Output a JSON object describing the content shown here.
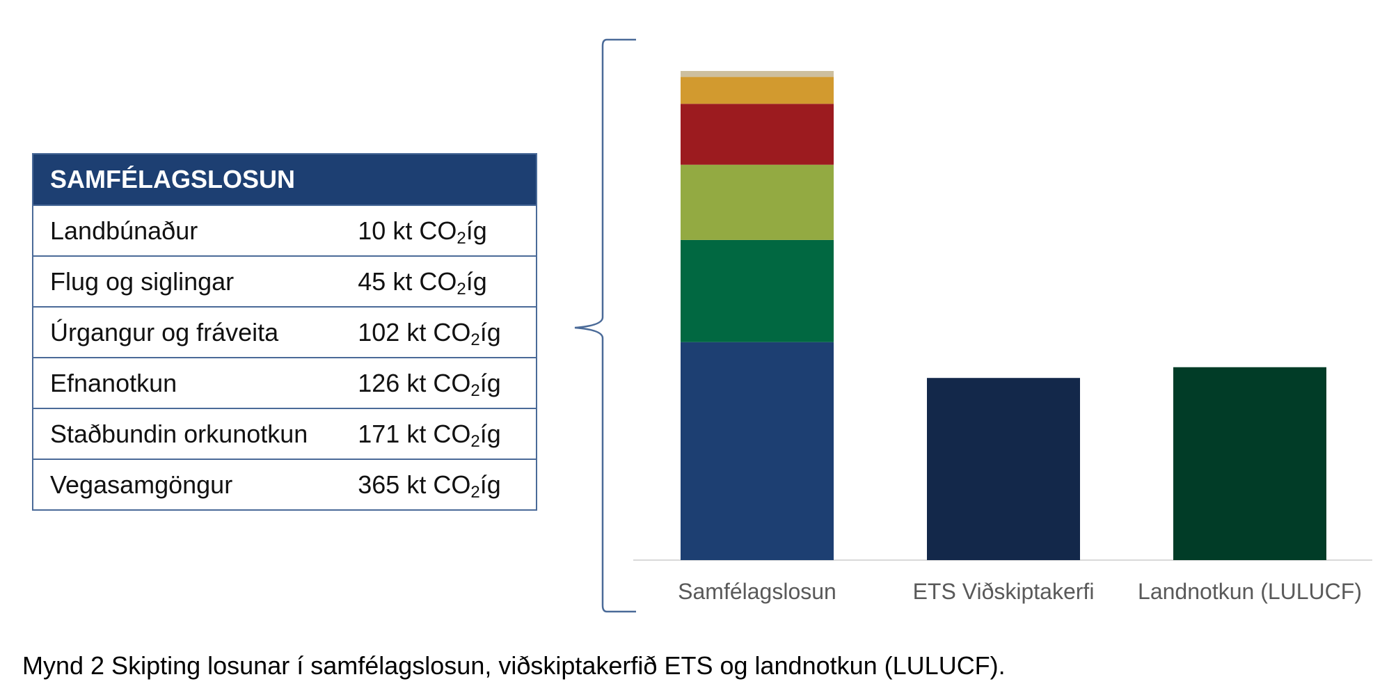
{
  "table": {
    "title": "SAMFÉLAGSLOSUN",
    "co2_prefix": "kt CO",
    "co2_sub": "2",
    "co2_suffix": "íg",
    "rows": [
      {
        "label": "Landbúnaður",
        "value": "10"
      },
      {
        "label": "Flug og siglingar",
        "value": "45"
      },
      {
        "label": "Úrgangur og fráveita",
        "value": "102"
      },
      {
        "label": "Efnanotkun",
        "value": "126"
      },
      {
        "label": "Staðbundin orkunotkun",
        "value": "171"
      },
      {
        "label": "Vegasamgöngur",
        "value": "365"
      }
    ]
  },
  "chart_data": {
    "type": "bar",
    "stacked": true,
    "categories": [
      "Samfélagslosun",
      "ETS Viðskiptakerfi",
      "Landnotkun (LULUCF)"
    ],
    "series": [
      {
        "name": "Vegasamgöngur",
        "color": "#1d3f72",
        "values": [
          365,
          0,
          0
        ]
      },
      {
        "name": "Staðbundin orkunotkun",
        "color": "#016841",
        "values": [
          171,
          0,
          0
        ]
      },
      {
        "name": "Efnanotkun",
        "color": "#93aa42",
        "values": [
          126,
          0,
          0
        ]
      },
      {
        "name": "Úrgangur og fráveita",
        "color": "#9c1b1f",
        "values": [
          102,
          0,
          0
        ]
      },
      {
        "name": "Flug og siglingar",
        "color": "#d29a2f",
        "values": [
          45,
          0,
          0
        ]
      },
      {
        "name": "Landbúnaður",
        "color": "#cdbf9e",
        "values": [
          10,
          0,
          0
        ]
      },
      {
        "color": "#13284a",
        "values": [
          0,
          305,
          0
        ]
      },
      {
        "color": "#013c27",
        "values": [
          0,
          0,
          323
        ]
      }
    ],
    "grid": false,
    "legend": "none",
    "title": "",
    "xlabel": "",
    "ylabel": "",
    "ylim": [
      0,
      819
    ]
  },
  "caption": "Mynd 2 Skipting losunar í samfélagslosun, viðskiptakerfið ETS og landnotkun (LULUCF)."
}
